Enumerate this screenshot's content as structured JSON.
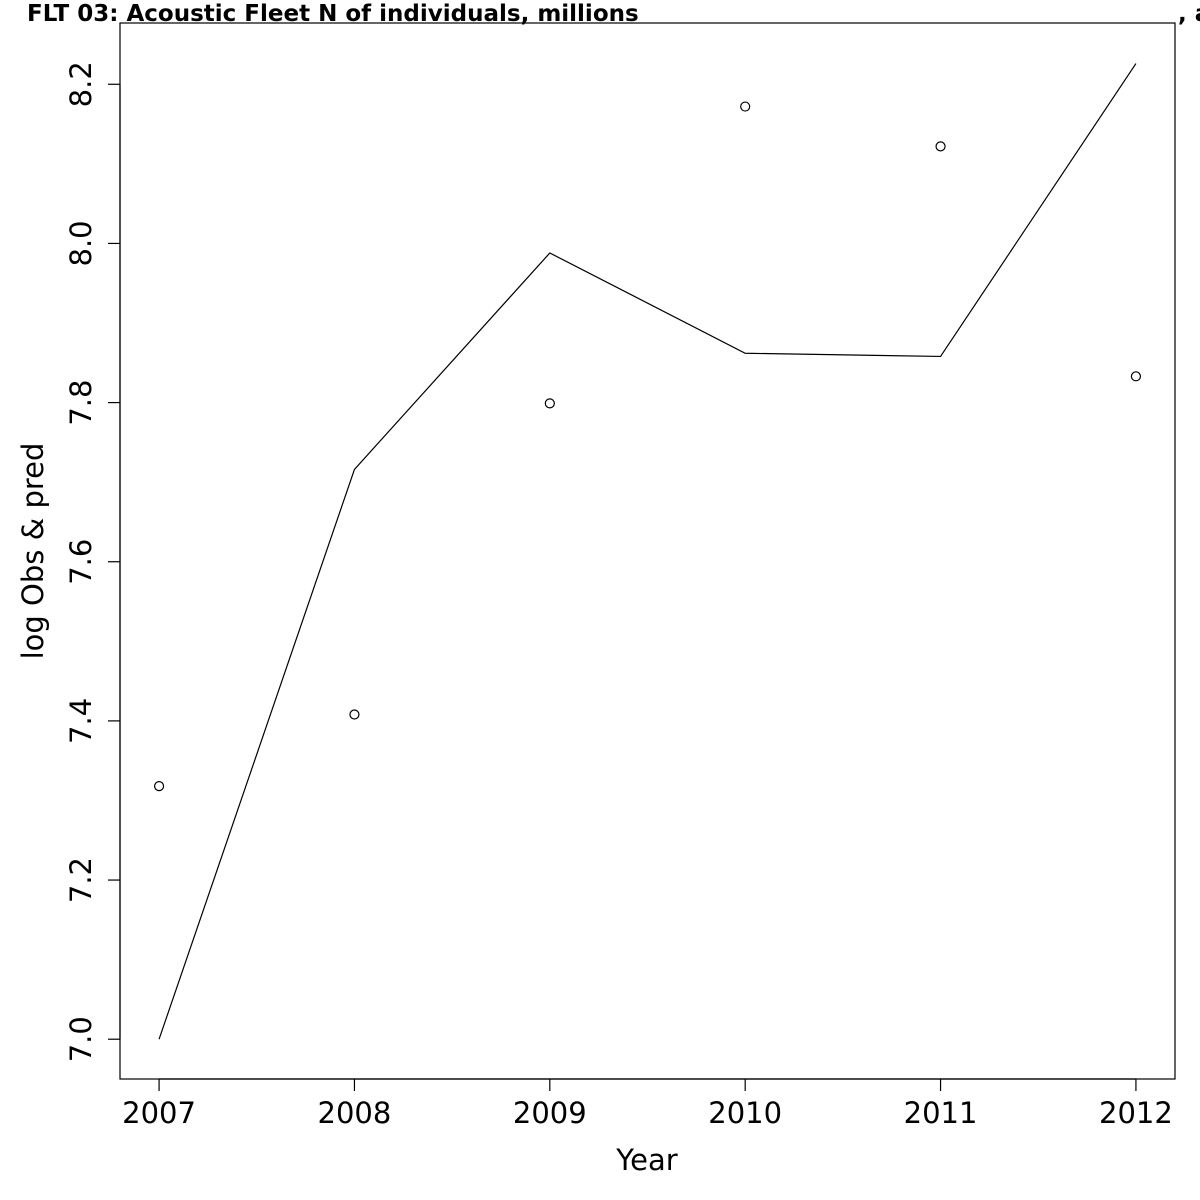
{
  "chart_data": {
    "type": "line",
    "title": "FLT 03: Acoustic Fleet   N of individuals, millions",
    "title_trailing": ", a",
    "xlabel": "Year",
    "ylabel": "log Obs & pred",
    "x": [
      2007,
      2008,
      2009,
      2010,
      2011,
      2012
    ],
    "x_tick_labels": [
      "2007",
      "2008",
      "2009",
      "2010",
      "2011",
      "2012"
    ],
    "y_ticks": [
      7.0,
      7.2,
      7.4,
      7.6,
      7.8,
      8.0,
      8.2
    ],
    "y_tick_labels": [
      "7.0",
      "7.2",
      "7.4",
      "7.6",
      "7.8",
      "8.0",
      "8.2"
    ],
    "xlim": [
      2006.8,
      2012.2
    ],
    "ylim": [
      6.95,
      8.277
    ],
    "grid": false,
    "legend": "none",
    "series": [
      {
        "kind": "points",
        "marker": "open-circle",
        "values": [
          7.318,
          7.408,
          7.799,
          8.172,
          8.122,
          7.833
        ]
      },
      {
        "kind": "line",
        "values": [
          7.0,
          7.716,
          7.988,
          7.862,
          7.858,
          8.226
        ]
      }
    ]
  }
}
